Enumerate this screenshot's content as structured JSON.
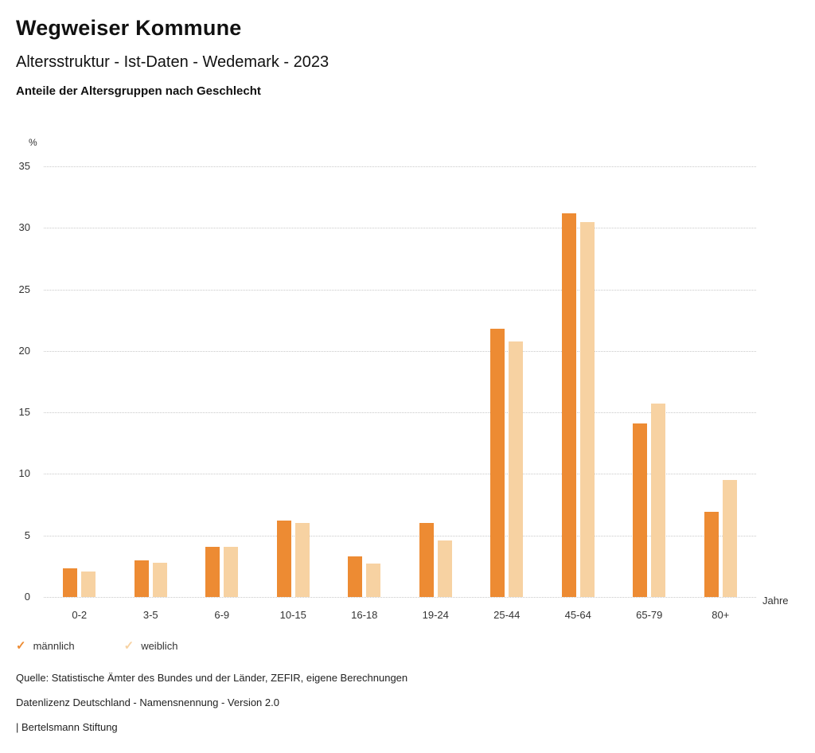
{
  "header": {
    "title": "Wegweiser Kommune",
    "subtitle": "Altersstruktur - Ist-Daten - Wedemark - 2023",
    "chart_heading": "Anteile der Altersgruppen nach Geschlecht"
  },
  "icons": {
    "check": "✓"
  },
  "chart_data": {
    "type": "bar",
    "title": "Anteile der Altersgruppen nach Geschlecht",
    "categories": [
      "0-2",
      "3-5",
      "6-9",
      "10-15",
      "16-18",
      "19-24",
      "25-44",
      "45-64",
      "65-79",
      "80+"
    ],
    "series": [
      {
        "name": "männlich",
        "color": "#ED8B33",
        "values": [
          2.3,
          3.0,
          4.1,
          6.2,
          3.3,
          6.0,
          21.8,
          31.2,
          14.1,
          6.9
        ]
      },
      {
        "name": "weiblich",
        "color": "#F7D2A2",
        "values": [
          2.1,
          2.8,
          4.1,
          6.0,
          2.7,
          4.6,
          20.8,
          30.5,
          15.7,
          9.5
        ]
      }
    ],
    "ylabel": "%",
    "xlabel": "Jahre",
    "ylim": [
      0,
      35
    ],
    "yticks": [
      0,
      5,
      10,
      15,
      20,
      25,
      30,
      35
    ],
    "grid": true,
    "legend_position": "bottom"
  },
  "footer": {
    "source": "Quelle: Statistische Ämter des Bundes und der Länder, ZEFIR, eigene Berechnungen",
    "license": "Datenlizenz Deutschland - Namensnennung - Version 2.0",
    "attribution": "| Bertelsmann Stiftung"
  }
}
